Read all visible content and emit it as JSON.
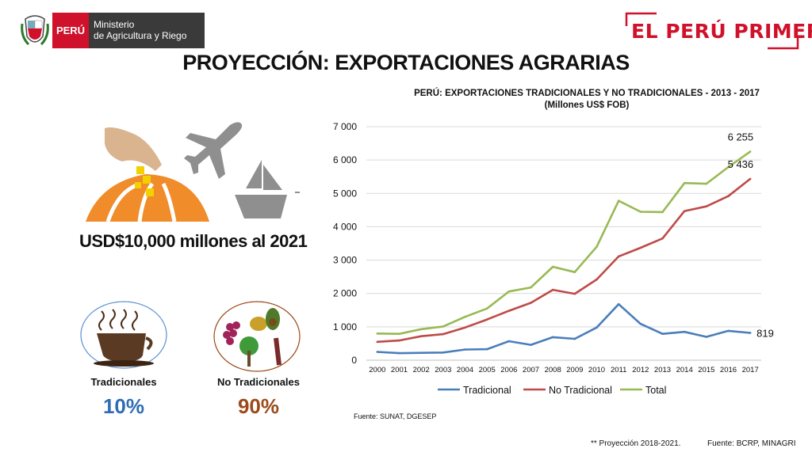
{
  "header": {
    "country": "PERÚ",
    "ministry_line1": "Ministerio",
    "ministry_line2": "de Agricultura y Riego",
    "brand": "EL PERÚ PRIMERO"
  },
  "title": "PROYECCIÓN: EXPORTACIONES AGRARIAS",
  "goal": "USD$10,000 millones al 2021",
  "categories": [
    {
      "label": "Tradicionales",
      "percent": "10%",
      "color": "#2e6db4"
    },
    {
      "label": "No Tradicionales",
      "percent": "90%",
      "color": "#9c4a1a"
    }
  ],
  "icons": [
    "hand-planting-icon",
    "airplane-icon",
    "ship-icon",
    "coffee-cup-icon",
    "fruits-icon"
  ],
  "colors": {
    "brand_red": "#d0112b",
    "tradicional": "#4a7ebb",
    "no_tradicional": "#be4b48",
    "total": "#98b954"
  },
  "chart_data": {
    "type": "line",
    "title": "PERÚ: EXPORTACIONES TRADICIONALES Y NO TRADICIONALES - 2013 - 2017",
    "subtitle": "(Millones US$ FOB)",
    "x": [
      "2000",
      "2001",
      "2002",
      "2003",
      "2004",
      "2005",
      "2006",
      "2007",
      "2008",
      "2009",
      "2010",
      "2011",
      "2012",
      "2013",
      "2014",
      "2015",
      "2016",
      "2017"
    ],
    "ylim": [
      0,
      7000
    ],
    "yticks": [
      0,
      1000,
      2000,
      3000,
      4000,
      5000,
      6000,
      7000
    ],
    "ytick_labels": [
      "0",
      "1 000",
      "2 000",
      "3 000",
      "4 000",
      "5 000",
      "6 000",
      "7 000"
    ],
    "grid": true,
    "legend": "bottom",
    "series": [
      {
        "name": "Tradicional",
        "color": "#4a7ebb",
        "values": [
          250,
          210,
          220,
          230,
          320,
          330,
          570,
          460,
          690,
          640,
          980,
          1680,
          1090,
          790,
          850,
          700,
          880,
          819
        ]
      },
      {
        "name": "No Tradicional",
        "color": "#be4b48",
        "values": [
          550,
          590,
          720,
          780,
          980,
          1220,
          1480,
          1720,
          2110,
          1990,
          2420,
          3110,
          3370,
          3650,
          4470,
          4610,
          4920,
          5436
        ]
      },
      {
        "name": "Total",
        "color": "#98b954",
        "values": [
          800,
          790,
          930,
          1010,
          1300,
          1550,
          2060,
          2180,
          2800,
          2640,
          3400,
          4780,
          4450,
          4440,
          5310,
          5290,
          5790,
          6255
        ]
      }
    ],
    "annotations": [
      {
        "series": "Total",
        "x": "2017",
        "text": "6 255"
      },
      {
        "series": "No Tradicional",
        "x": "2017",
        "text": "5 436"
      },
      {
        "series": "Tradicional",
        "x": "2017",
        "text": "819"
      }
    ]
  },
  "source_chart": "Fuente: SUNAT, DGESEP",
  "footer": {
    "projection": "** Proyección 2018-2021.",
    "source": "Fuente: BCRP, MINAGRI"
  }
}
